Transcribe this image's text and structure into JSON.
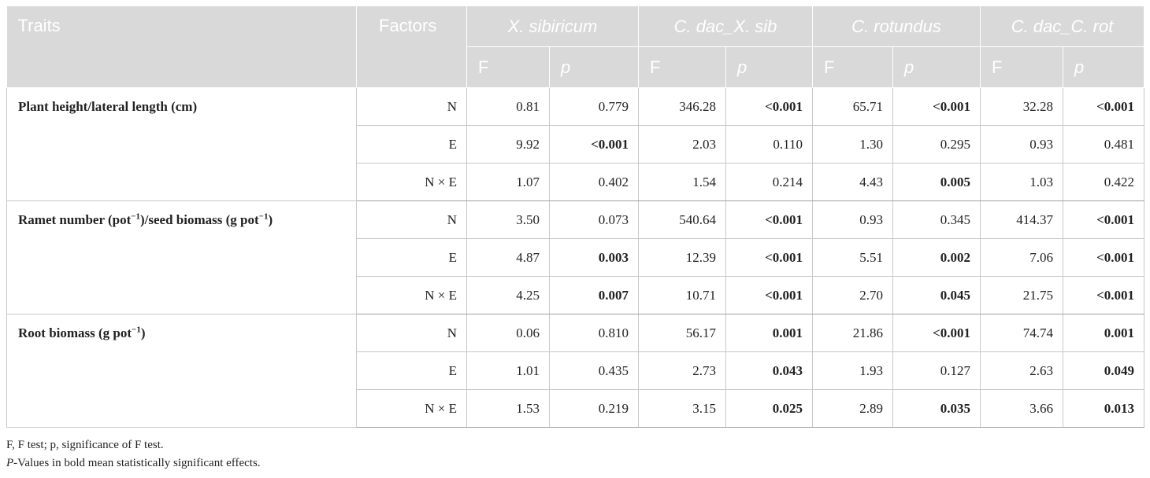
{
  "header": {
    "traits": "Traits",
    "factors": "Factors",
    "species": [
      "X. sibiricum",
      "C. dac_X. sib",
      "C. rotundus",
      "C. dac_C. rot"
    ],
    "f_label": "F",
    "p_label": "p"
  },
  "rows": [
    {
      "trait": "Plant height/lateral length (cm)",
      "factor": "N",
      "cells": [
        "0.81",
        "0.779",
        "346.28",
        "<0.001",
        "65.71",
        "<0.001",
        "32.28",
        "<0.001"
      ],
      "bold": [
        false,
        false,
        false,
        true,
        false,
        true,
        false,
        true
      ]
    },
    {
      "trait": "",
      "factor": "E",
      "cells": [
        "9.92",
        "<0.001",
        "2.03",
        "0.110",
        "1.30",
        "0.295",
        "0.93",
        "0.481"
      ],
      "bold": [
        false,
        true,
        false,
        false,
        false,
        false,
        false,
        false
      ]
    },
    {
      "trait": "",
      "factor": "N × E",
      "cells": [
        "1.07",
        "0.402",
        "1.54",
        "0.214",
        "4.43",
        "0.005",
        "1.03",
        "0.422"
      ],
      "bold": [
        false,
        false,
        false,
        false,
        false,
        true,
        false,
        false
      ]
    },
    {
      "trait": "Ramet number (pot−1)/seed biomass (g pot−1)",
      "factor": "N",
      "cells": [
        "3.50",
        "0.073",
        "540.64",
        "<0.001",
        "0.93",
        "0.345",
        "414.37",
        "<0.001"
      ],
      "bold": [
        false,
        false,
        false,
        true,
        false,
        false,
        false,
        true
      ]
    },
    {
      "trait": "",
      "factor": "E",
      "cells": [
        "4.87",
        "0.003",
        "12.39",
        "<0.001",
        "5.51",
        "0.002",
        "7.06",
        "<0.001"
      ],
      "bold": [
        false,
        true,
        false,
        true,
        false,
        true,
        false,
        true
      ]
    },
    {
      "trait": "",
      "factor": "N × E",
      "cells": [
        "4.25",
        "0.007",
        "10.71",
        "<0.001",
        "2.70",
        "0.045",
        "21.75",
        "<0.001"
      ],
      "bold": [
        false,
        true,
        false,
        true,
        false,
        true,
        false,
        true
      ]
    },
    {
      "trait": "Root biomass (g pot−1)",
      "factor": "N",
      "cells": [
        "0.06",
        "0.810",
        "56.17",
        "0.001",
        "21.86",
        "<0.001",
        "74.74",
        "0.001"
      ],
      "bold": [
        false,
        false,
        false,
        true,
        false,
        true,
        false,
        true
      ]
    },
    {
      "trait": "",
      "factor": "E",
      "cells": [
        "1.01",
        "0.435",
        "2.73",
        "0.043",
        "1.93",
        "0.127",
        "2.63",
        "0.049"
      ],
      "bold": [
        false,
        false,
        false,
        true,
        false,
        false,
        false,
        true
      ]
    },
    {
      "trait": "",
      "factor": "N × E",
      "cells": [
        "1.53",
        "0.219",
        "3.15",
        "0.025",
        "2.89",
        "0.035",
        "3.66",
        "0.013"
      ],
      "bold": [
        false,
        false,
        false,
        true,
        false,
        true,
        false,
        true
      ]
    }
  ],
  "notes": {
    "line1": "F, F test; p, significance of F test.",
    "line2_italic": "P",
    "line2_rest": "-Values in bold mean statistically significant effects."
  }
}
